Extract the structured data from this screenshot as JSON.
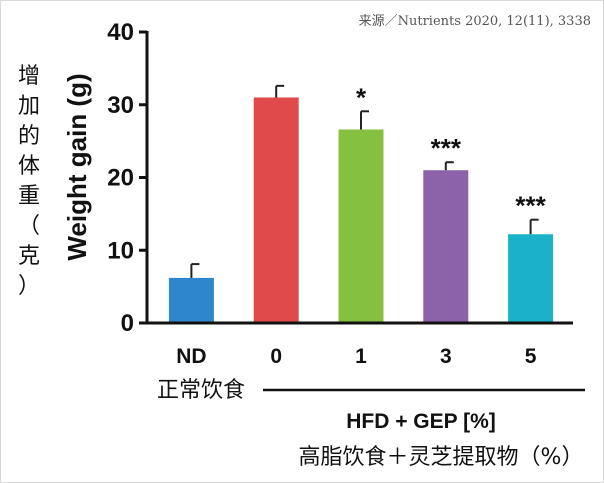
{
  "source": "来源／Nutrients 2020, 12(11), 3338",
  "chart_data": {
    "type": "bar",
    "ylabel": "Weight gain (g)",
    "ylabel_cn": [
      "增",
      "加",
      "的",
      "体",
      "重",
      "（",
      "克",
      "）"
    ],
    "ylim": [
      0,
      40
    ],
    "yticks": [
      0,
      10,
      20,
      30,
      40
    ],
    "grid": false,
    "categories": [
      "ND",
      "0",
      "1",
      "3",
      "5"
    ],
    "values": [
      6.2,
      31.0,
      26.6,
      21.0,
      12.2
    ],
    "errors": [
      1.9,
      1.6,
      2.5,
      1.1,
      2.0
    ],
    "significance": [
      "",
      "",
      "*",
      "***",
      "***"
    ],
    "colors": [
      "#2e86cc",
      "#e04a4b",
      "#86c040",
      "#8c63a8",
      "#1ab2c9"
    ],
    "nd_label_cn": "正常饮食",
    "group_label": "HFD + GEP [%]",
    "group_label_cn": "高脂饮食＋灵芝提取物（%）"
  }
}
